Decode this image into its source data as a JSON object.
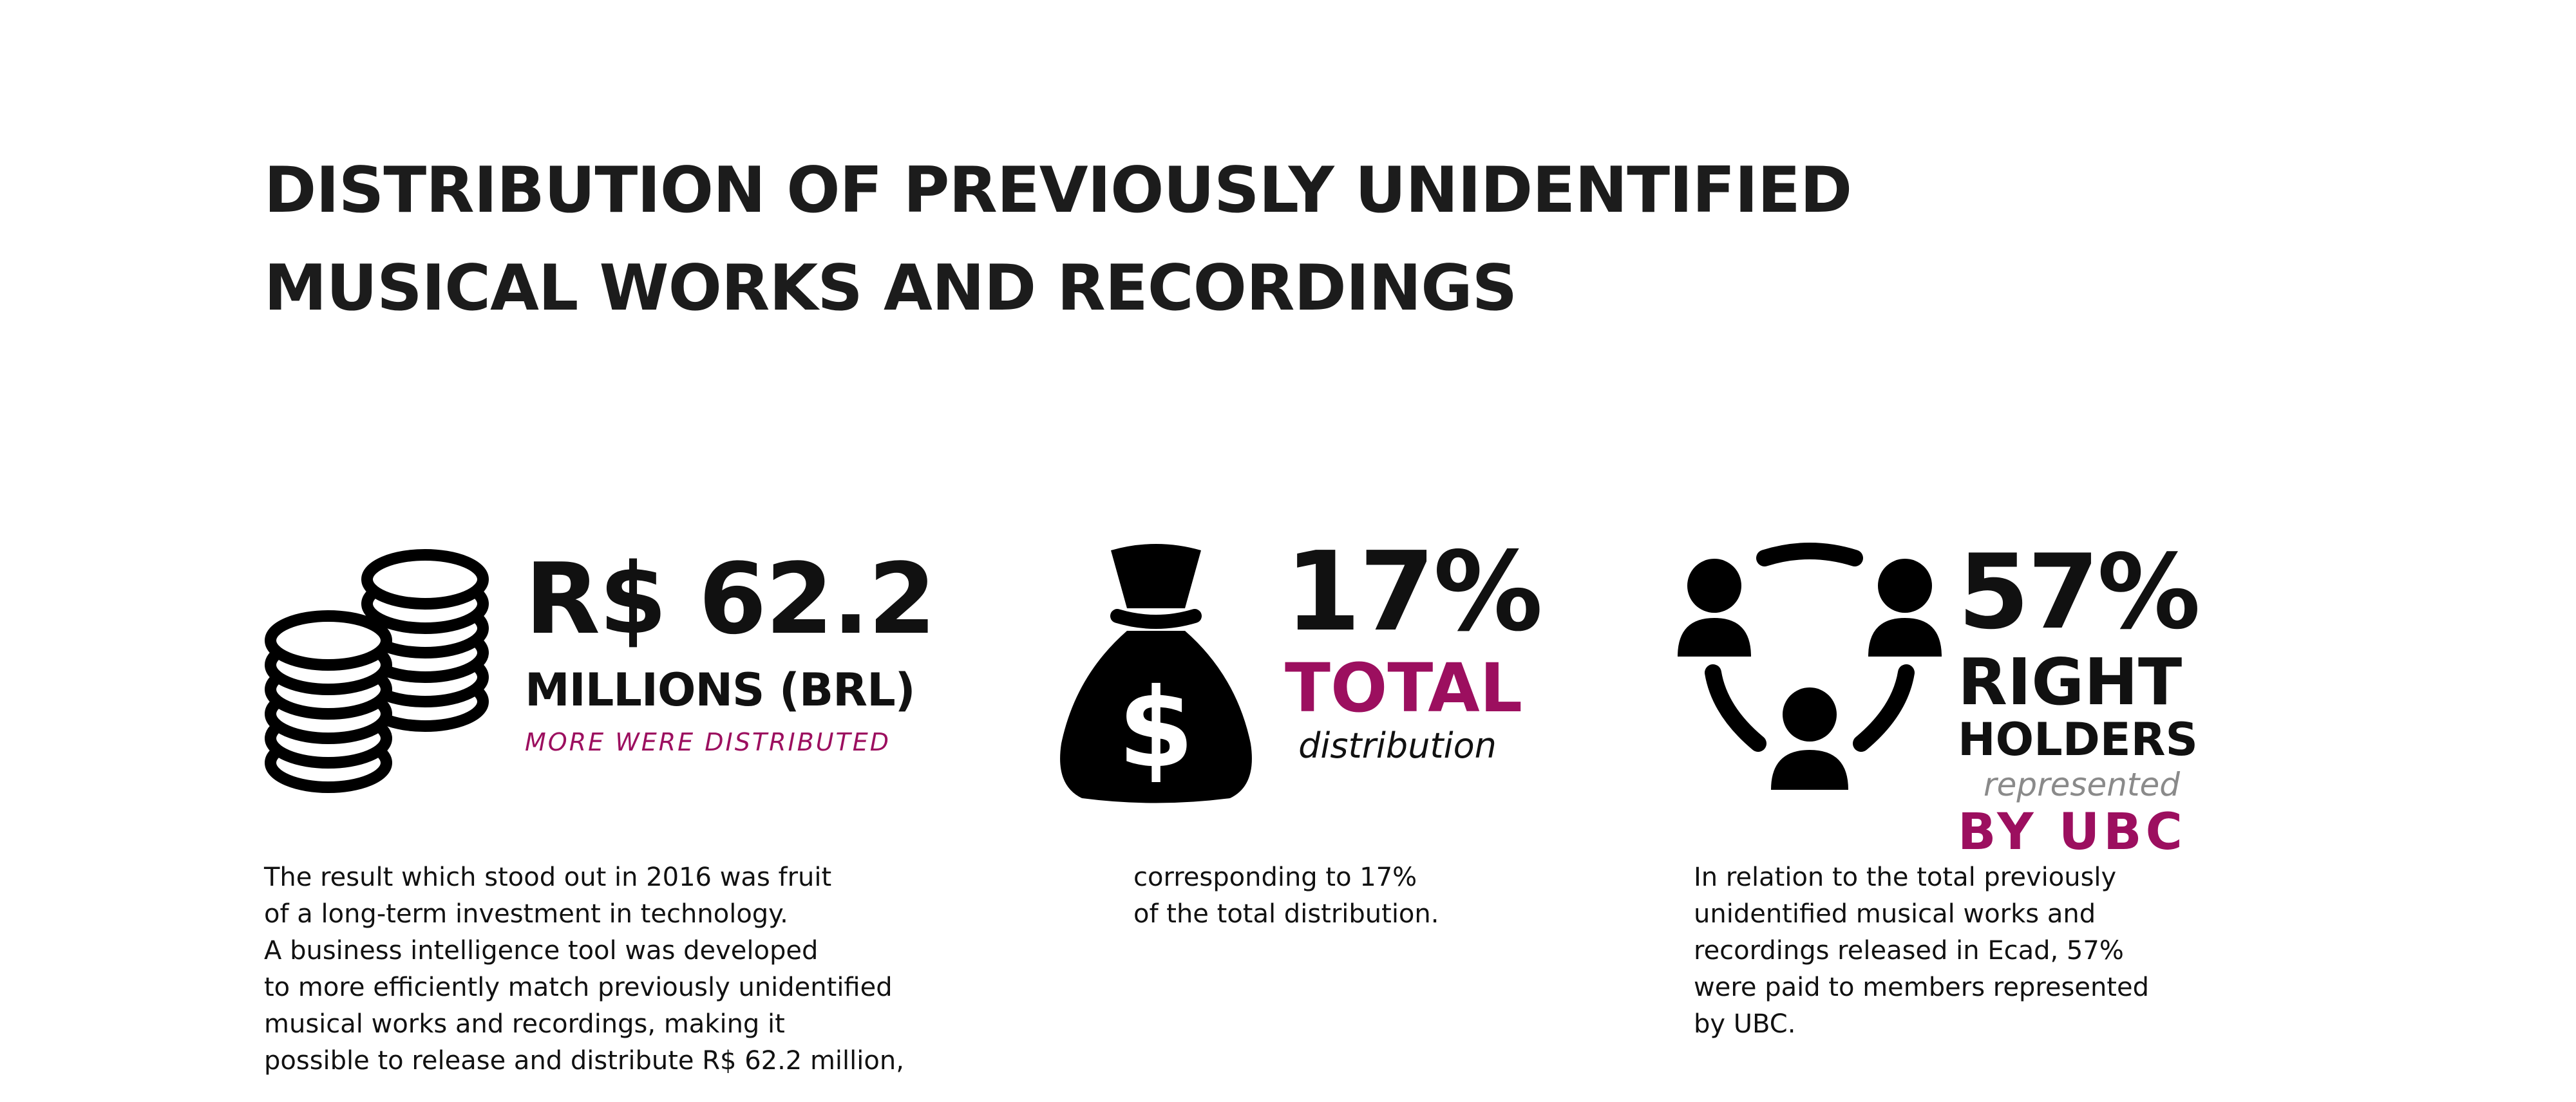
{
  "title": {
    "line1": "DISTRIBUTION OF PREVIOUSLY UNIDENTIFIED",
    "line2": "MUSICAL WORKS AND RECORDINGS"
  },
  "stat1": {
    "icon": "coins-icon",
    "value": "R$ 62.2",
    "unit": "MILLIONS (BRL)",
    "caption": "MORE WERE DISTRIBUTED",
    "body": [
      "The result which stood out in 2016 was fruit",
      "of a long-term investment in technology.",
      "A business intelligence tool was developed",
      "to more efficiently match previously unidentified",
      "musical works and recordings, making it",
      "possible to release and distribute R$ 62.2 million,"
    ]
  },
  "stat2": {
    "icon": "money-bag-icon",
    "value": "17%",
    "label": "TOTAL",
    "caption": "distribution",
    "body": [
      "corresponding to 17%",
      "of the total distribution."
    ]
  },
  "stat3": {
    "icon": "people-network-icon",
    "value": "57%",
    "label1": "RIGHT",
    "label2": "HOLDERS",
    "caption": "represented",
    "label3": "BY UBC",
    "body": [
      "In relation to the total previously",
      "unidentified musical works and",
      "recordings released in Ecad, 57%",
      "were paid to members represented",
      "by UBC."
    ]
  },
  "colors": {
    "accent": "#9c0f5f",
    "text": "#111111",
    "muted": "#8a8a8a"
  }
}
